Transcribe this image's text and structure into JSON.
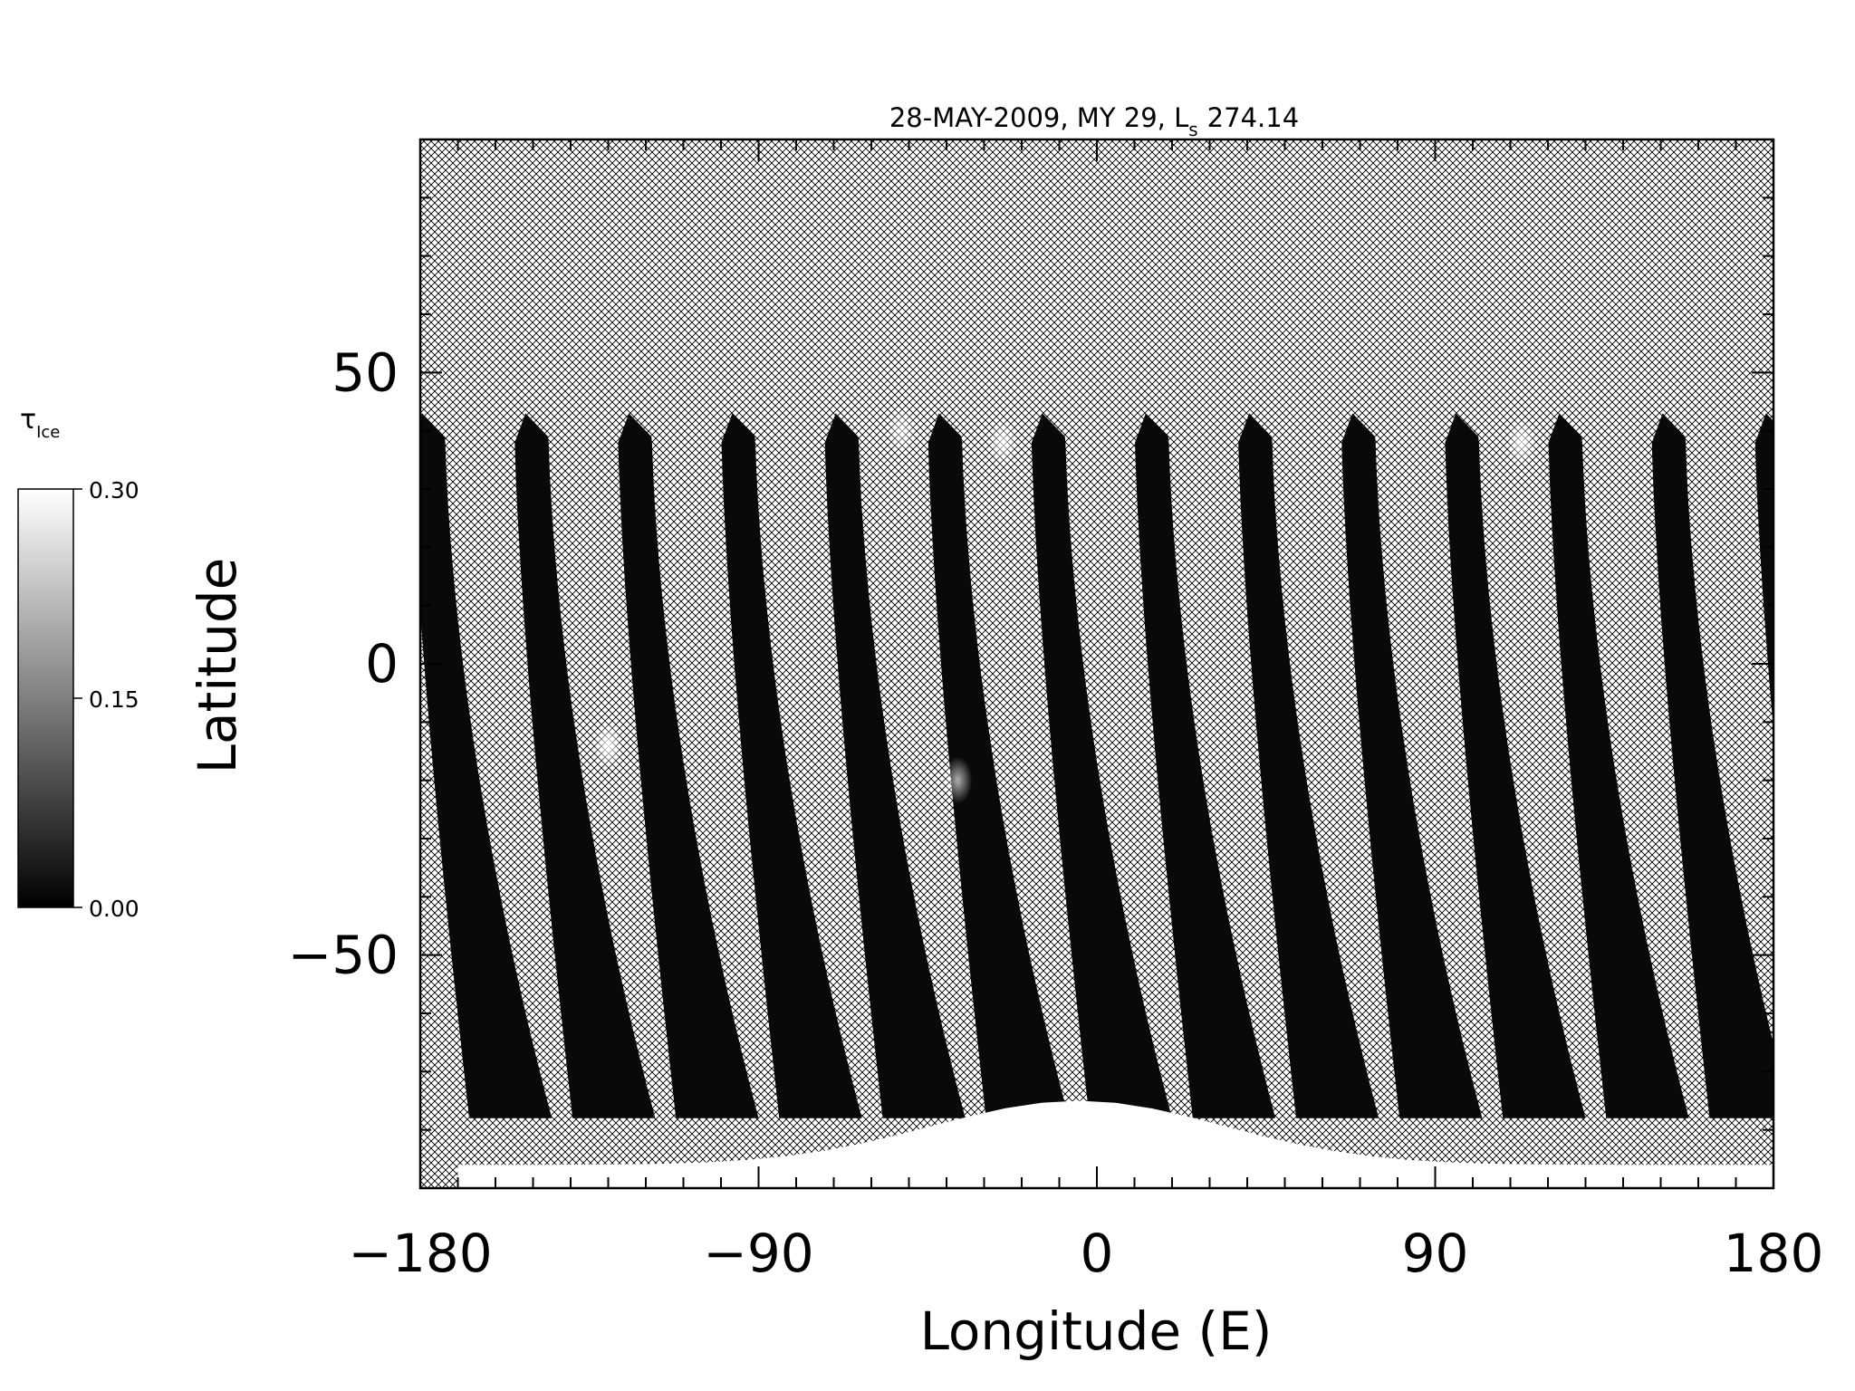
{
  "chart_data": {
    "type": "heatmap",
    "title": "28-MAY-2009, MY 29,  L",
    "title_subscript": "s",
    "title_value": "274.14",
    "xlabel": "Longitude (E)",
    "ylabel": "Latitude",
    "xlim": [
      -180,
      180
    ],
    "ylim": [
      -90,
      90
    ],
    "x_ticks": [
      -180,
      -90,
      0,
      90,
      180
    ],
    "x_tick_labels": [
      "−180",
      "−90",
      "0",
      "90",
      "180"
    ],
    "y_ticks": [
      50,
      0,
      -50
    ],
    "y_tick_labels": [
      "50",
      "0",
      "−50"
    ],
    "x_minor_step": 10,
    "y_minor_step": 10,
    "colorbar": {
      "label": "τ",
      "label_subscript": "Ice",
      "min": 0.0,
      "max": 0.3,
      "ticks": [
        0.0,
        0.15,
        0.3
      ],
      "tick_labels": [
        "0.00",
        "0.15",
        "0.30"
      ],
      "colormap": "grayscale",
      "placement": "left"
    },
    "no_data_pattern": "crosshatch",
    "swaths": {
      "count": 14,
      "start_lon_at_top": -180,
      "lon_spacing": 27.5,
      "lat_top": 43,
      "lat_bottom": -78,
      "lon_drift_deg": 22,
      "typical_value": 0.01
    },
    "south_polar_cap": {
      "lon_range": [
        -170,
        180
      ],
      "lat_edge_range": [
        -75,
        -90
      ],
      "value": 0.3
    },
    "bright_features": [
      {
        "lon": -130,
        "lat": -14,
        "value": 0.28
      },
      {
        "lon": -37,
        "lat": -20,
        "value": 0.2
      },
      {
        "lon": -52,
        "lat": 40,
        "value": 0.18
      },
      {
        "lon": -25,
        "lat": 38,
        "value": 0.22
      },
      {
        "lon": 113,
        "lat": 38,
        "value": 0.24
      }
    ]
  }
}
